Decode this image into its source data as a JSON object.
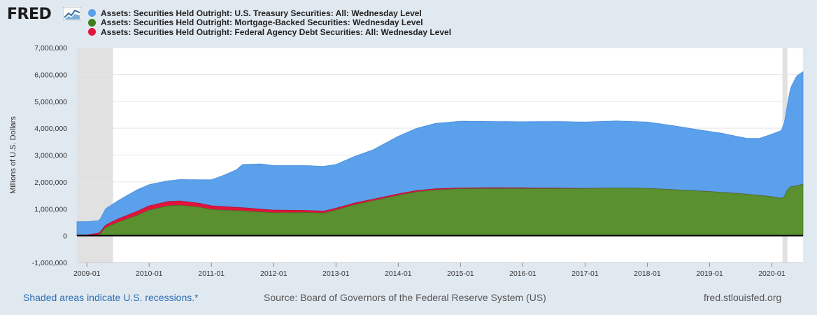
{
  "brand": {
    "logo_text": "FRED",
    "url": "fred.stlouisfed.org"
  },
  "footer": {
    "recession_note": "Shaded areas indicate U.S. recessions.*",
    "source": "Source: Board of Governors of the Federal Reserve System (US)"
  },
  "colors": {
    "treasury": "#5ba0ea",
    "mbs": "#5a9030",
    "agency": "#e0143c",
    "recession": "#e1e1e1",
    "background": "#e1e9f0"
  },
  "chart_data": {
    "type": "area",
    "title": "",
    "ylabel": "Millions of U.S. Dollars",
    "xlabel": "",
    "ylim": [
      -1000000,
      7000000
    ],
    "xlim": [
      2008.84,
      2020.5
    ],
    "yticks": [
      -1000000,
      0,
      1000000,
      2000000,
      3000000,
      4000000,
      5000000,
      6000000,
      7000000
    ],
    "ytick_labels": [
      "-1,000,000",
      "0",
      "1,000,000",
      "2,000,000",
      "3,000,000",
      "4,000,000",
      "5,000,000",
      "6,000,000",
      "7,000,000"
    ],
    "xticks": [
      2009,
      2010,
      2011,
      2012,
      2013,
      2014,
      2015,
      2016,
      2017,
      2018,
      2019,
      2020
    ],
    "xtick_labels": [
      "2009-01",
      "2010-01",
      "2011-01",
      "2012-01",
      "2013-01",
      "2014-01",
      "2015-01",
      "2016-01",
      "2017-01",
      "2018-01",
      "2019-01",
      "2020-01"
    ],
    "recessions": [
      [
        2008.84,
        2009.42
      ],
      [
        2020.17,
        2020.25
      ]
    ],
    "stacking": "cumulative: mbs, then mbs+agency, then treasury total on top",
    "series": [
      {
        "name": "Assets: Securities Held Outright: U.S. Treasury Securities: All: Wednesday Level",
        "key": "treasury",
        "x": [
          2008.84,
          2009.0,
          2009.2,
          2009.3,
          2009.5,
          2009.8,
          2010.0,
          2010.3,
          2010.5,
          2010.8,
          2011.0,
          2011.2,
          2011.4,
          2011.5,
          2011.8,
          2012.0,
          2012.5,
          2012.8,
          2013.0,
          2013.3,
          2013.6,
          2014.0,
          2014.3,
          2014.6,
          2015.0,
          2015.5,
          2016.0,
          2016.5,
          2017.0,
          2017.5,
          2018.0,
          2018.4,
          2018.8,
          2019.2,
          2019.6,
          2019.8,
          2020.0,
          2020.15,
          2020.2,
          2020.25,
          2020.3,
          2020.4,
          2020.5
        ],
        "values": [
          520000,
          520000,
          560000,
          1000000,
          1300000,
          1700000,
          1900000,
          2040000,
          2090000,
          2080000,
          2080000,
          2250000,
          2450000,
          2650000,
          2670000,
          2610000,
          2610000,
          2580000,
          2650000,
          2950000,
          3200000,
          3700000,
          4000000,
          4180000,
          4260000,
          4250000,
          4240000,
          4250000,
          4230000,
          4270000,
          4230000,
          4100000,
          3950000,
          3810000,
          3620000,
          3620000,
          3780000,
          3910000,
          4200000,
          4900000,
          5500000,
          5950000,
          6100000
        ]
      },
      {
        "name": "Assets: Securities Held Outright: Mortgage-Backed Securities: Wednesday Level",
        "key": "mbs",
        "x": [
          2008.84,
          2009.0,
          2009.2,
          2009.3,
          2009.5,
          2009.8,
          2010.0,
          2010.3,
          2010.5,
          2010.8,
          2011.0,
          2011.5,
          2012.0,
          2012.5,
          2012.8,
          2013.0,
          2013.3,
          2013.6,
          2014.0,
          2014.3,
          2014.6,
          2015.0,
          2015.5,
          2016.0,
          2016.5,
          2017.0,
          2017.5,
          2018.0,
          2018.5,
          2019.0,
          2019.5,
          2020.0,
          2020.15,
          2020.2,
          2020.25,
          2020.3,
          2020.4,
          2020.5
        ],
        "values": [
          0,
          0,
          30000,
          300000,
          500000,
          750000,
          950000,
          1110000,
          1130000,
          1060000,
          970000,
          920000,
          850000,
          860000,
          840000,
          950000,
          1150000,
          1300000,
          1500000,
          1630000,
          1700000,
          1740000,
          1750000,
          1750000,
          1750000,
          1750000,
          1770000,
          1760000,
          1700000,
          1640000,
          1560000,
          1450000,
          1380000,
          1450000,
          1700000,
          1820000,
          1850000,
          1920000
        ]
      },
      {
        "name": "Assets: Securities Held Outright: Federal Agency Debt Securities: All: Wednesday Level",
        "key": "agency",
        "x": [
          2008.84,
          2009.0,
          2009.2,
          2009.4,
          2009.7,
          2010.0,
          2010.5,
          2011.0,
          2011.5,
          2012.0,
          2012.5,
          2013.0,
          2013.5,
          2014.0,
          2014.5,
          2015.0,
          2015.5,
          2016.0,
          2016.5,
          2017.0,
          2017.5,
          2018.0,
          2018.5,
          2019.0,
          2019.5,
          2020.0,
          2020.5
        ],
        "values": [
          20000,
          25000,
          70000,
          110000,
          140000,
          160000,
          160000,
          140000,
          120000,
          100000,
          80000,
          70000,
          60000,
          55000,
          45000,
          36000,
          33000,
          30000,
          20000,
          10000,
          5000,
          2500,
          2400,
          2400,
          2400,
          2400,
          2300
        ]
      }
    ]
  }
}
